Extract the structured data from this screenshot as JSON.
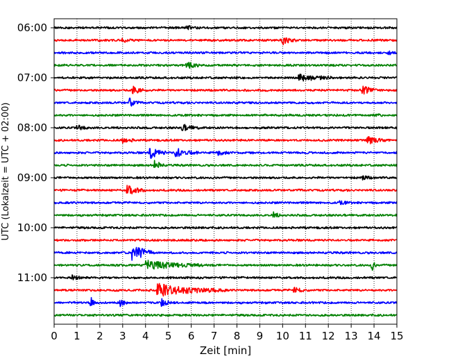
{
  "chart_data": {
    "type": "line",
    "title": "",
    "xlabel": "Zeit  [min]",
    "ylabel": "UTC (Lokalzeit = UTC + 02:00)",
    "xlim": [
      0,
      15
    ],
    "x_ticks": [
      0,
      1,
      2,
      3,
      4,
      5,
      6,
      7,
      8,
      9,
      10,
      11,
      12,
      13,
      14,
      15
    ],
    "x_grid": "dotted vertical lines at each minute",
    "y_tick_labels": [
      "06:00",
      "07:00",
      "08:00",
      "09:00",
      "10:00",
      "11:00"
    ],
    "trace_interval_minutes": 15,
    "trace_colors": [
      "#000000",
      "#ff0000",
      "#0000ff",
      "#008000"
    ],
    "traces": [
      {
        "time": "06:00",
        "color": "#000000",
        "events": [
          {
            "t": 5.8,
            "amp": 0.3,
            "dur": 0.5
          }
        ]
      },
      {
        "time": "06:15",
        "color": "#ff0000",
        "events": [
          {
            "t": 3.0,
            "amp": 0.4,
            "dur": 0.4
          },
          {
            "t": 10.0,
            "amp": 0.6,
            "dur": 0.6
          }
        ]
      },
      {
        "time": "06:30",
        "color": "#0000ff",
        "events": [
          {
            "t": 14.6,
            "amp": 0.3,
            "dur": 0.4
          }
        ]
      },
      {
        "time": "06:45",
        "color": "#008000",
        "events": [
          {
            "t": 5.8,
            "amp": 0.6,
            "dur": 0.6
          }
        ]
      },
      {
        "time": "07:00",
        "color": "#000000",
        "events": [
          {
            "t": 10.7,
            "amp": 0.6,
            "dur": 1.5
          }
        ]
      },
      {
        "time": "07:15",
        "color": "#ff0000",
        "events": [
          {
            "t": 3.4,
            "amp": 0.7,
            "dur": 0.7
          },
          {
            "t": 13.5,
            "amp": 0.6,
            "dur": 0.8
          }
        ]
      },
      {
        "time": "07:30",
        "color": "#0000ff",
        "events": [
          {
            "t": 3.3,
            "amp": 0.8,
            "dur": 0.4
          }
        ]
      },
      {
        "time": "07:45",
        "color": "#008000",
        "events": [
          {
            "t": 14.0,
            "amp": 0.3,
            "dur": 0.4
          }
        ]
      },
      {
        "time": "08:00",
        "color": "#000000",
        "events": [
          {
            "t": 1.0,
            "amp": 0.4,
            "dur": 0.6
          },
          {
            "t": 5.6,
            "amp": 0.5,
            "dur": 0.8
          }
        ]
      },
      {
        "time": "08:15",
        "color": "#ff0000",
        "events": [
          {
            "t": 3.0,
            "amp": 0.4,
            "dur": 0.6
          },
          {
            "t": 13.7,
            "amp": 0.6,
            "dur": 0.8
          }
        ]
      },
      {
        "time": "08:30",
        "color": "#0000ff",
        "events": [
          {
            "t": 4.2,
            "amp": 1.0,
            "dur": 0.7
          },
          {
            "t": 5.3,
            "amp": 0.8,
            "dur": 1.0
          },
          {
            "t": 7.1,
            "amp": 0.5,
            "dur": 0.6
          }
        ]
      },
      {
        "time": "08:45",
        "color": "#008000",
        "events": [
          {
            "t": 4.4,
            "amp": 0.9,
            "dur": 0.4
          }
        ]
      },
      {
        "time": "09:00",
        "color": "#000000",
        "events": [
          {
            "t": 13.5,
            "amp": 0.4,
            "dur": 0.4
          }
        ]
      },
      {
        "time": "09:15",
        "color": "#ff0000",
        "events": [
          {
            "t": 3.2,
            "amp": 0.8,
            "dur": 0.8
          }
        ]
      },
      {
        "time": "09:30",
        "color": "#0000ff",
        "events": [
          {
            "t": 12.5,
            "amp": 0.3,
            "dur": 0.4
          }
        ]
      },
      {
        "time": "09:45",
        "color": "#008000",
        "events": [
          {
            "t": 9.6,
            "amp": 0.4,
            "dur": 0.4
          }
        ]
      },
      {
        "time": "10:00",
        "color": "#000000",
        "events": []
      },
      {
        "time": "10:15",
        "color": "#ff0000",
        "events": []
      },
      {
        "time": "10:30",
        "color": "#0000ff",
        "events": [
          {
            "t": 3.4,
            "amp": 1.6,
            "dur": 0.9
          }
        ]
      },
      {
        "time": "10:45",
        "color": "#008000",
        "events": [
          {
            "t": 4.0,
            "amp": 0.7,
            "dur": 2.6
          },
          {
            "t": 13.9,
            "amp": 0.9,
            "dur": 0.2
          }
        ]
      },
      {
        "time": "11:00",
        "color": "#000000",
        "events": [
          {
            "t": 0.8,
            "amp": 0.4,
            "dur": 0.5
          }
        ]
      },
      {
        "time": "11:15",
        "color": "#ff0000",
        "events": [
          {
            "t": 4.5,
            "amp": 1.0,
            "dur": 3.0
          },
          {
            "t": 10.5,
            "amp": 0.5,
            "dur": 0.6
          }
        ]
      },
      {
        "time": "11:30",
        "color": "#0000ff",
        "events": [
          {
            "t": 1.6,
            "amp": 0.9,
            "dur": 0.2
          },
          {
            "t": 2.9,
            "amp": 0.6,
            "dur": 0.3
          },
          {
            "t": 4.7,
            "amp": 0.5,
            "dur": 0.5
          }
        ]
      },
      {
        "time": "11:45",
        "color": "#008000",
        "events": []
      }
    ]
  }
}
